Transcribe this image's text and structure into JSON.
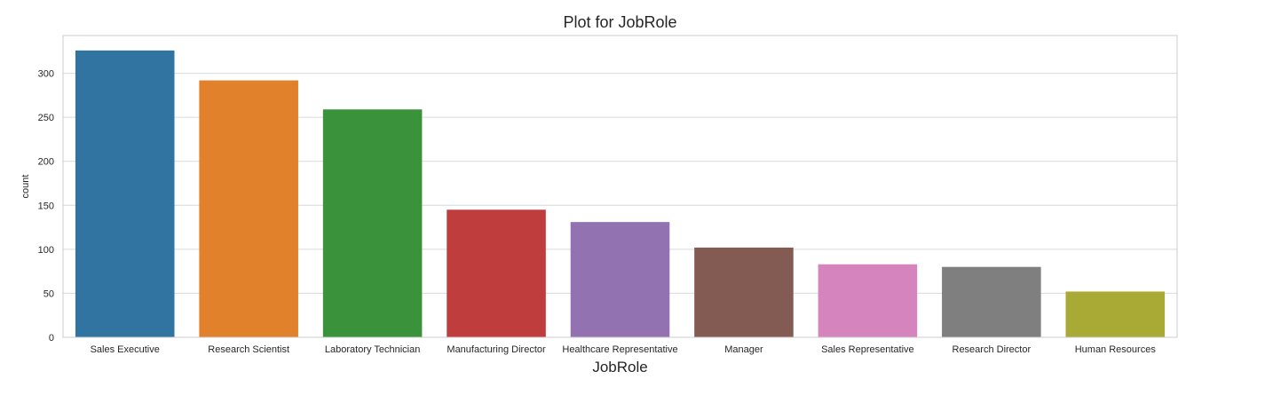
{
  "chart_data": {
    "type": "bar",
    "title": "Plot for JobRole",
    "xlabel": "JobRole",
    "ylabel": "count",
    "categories": [
      "Sales Executive",
      "Research Scientist",
      "Laboratory Technician",
      "Manufacturing Director",
      "Healthcare Representative",
      "Manager",
      "Sales Representative",
      "Research Director",
      "Human Resources"
    ],
    "values": [
      326,
      292,
      259,
      145,
      131,
      102,
      83,
      80,
      52
    ],
    "colors": [
      "#3274a1",
      "#e1812c",
      "#3a923a",
      "#c03d3e",
      "#9372b2",
      "#845b53",
      "#d684bd",
      "#7f7f7f",
      "#a9aa35"
    ],
    "ylim": [
      0,
      343
    ],
    "yticks": [
      0,
      50,
      100,
      150,
      200,
      250,
      300
    ],
    "grid": true,
    "gridColor": "#d9d9d9",
    "frameColor": "#cccccc"
  }
}
